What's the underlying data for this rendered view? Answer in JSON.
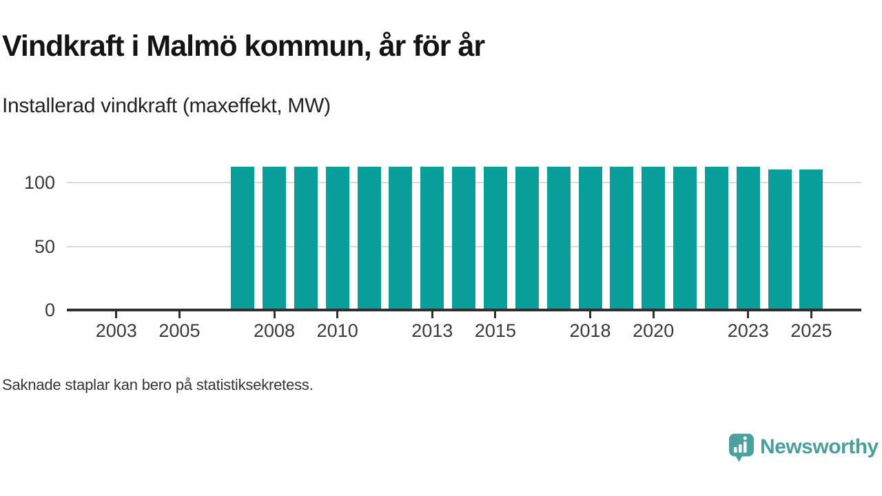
{
  "header": {
    "title": "Vindkraft i Malmö kommun, år för år",
    "subtitle": "Installerad vindkraft (maxeffekt, MW)"
  },
  "footnote": "Saknade staplar kan bero på statistiksekretess.",
  "branding": {
    "wordmark": "Newsworthy",
    "icon": "newsworthy-speech-bubble-bar-chart-icon",
    "icon_color": "#4aa19d",
    "wordmark_color": "#4a9f9b"
  },
  "chart_data": {
    "type": "bar",
    "title": "Vindkraft i Malmö kommun, år för år",
    "ylabel": "Installerad vindkraft (maxeffekt, MW)",
    "unit": "MW",
    "categories": [
      2002,
      2003,
      2004,
      2005,
      2006,
      2007,
      2008,
      2009,
      2010,
      2011,
      2012,
      2013,
      2014,
      2015,
      2016,
      2017,
      2018,
      2019,
      2020,
      2021,
      2022,
      2023,
      2024,
      2025
    ],
    "values": [
      null,
      null,
      null,
      null,
      null,
      112.6,
      112.6,
      112.6,
      112.6,
      112.6,
      112.6,
      112.6,
      112.6,
      112.6,
      112.6,
      112.6,
      112.6,
      112.6,
      112.6,
      112.6,
      112.6,
      112.6,
      110.4,
      110.4
    ],
    "x_tick_years": [
      2003,
      2005,
      2008,
      2010,
      2013,
      2015,
      2018,
      2020,
      2023,
      2025
    ],
    "y_ticks": [
      0,
      50,
      100
    ],
    "ylim": [
      0,
      121
    ],
    "xlim": [
      2001.4,
      2026.6
    ],
    "grid": "horizontal",
    "legend": "none",
    "bar_color": "#0a9e9b",
    "gridline_color": "#d9d9d9",
    "axis_color": "#2f2f2f",
    "note": "Saknade staplar kan bero på statistiksekretess."
  }
}
